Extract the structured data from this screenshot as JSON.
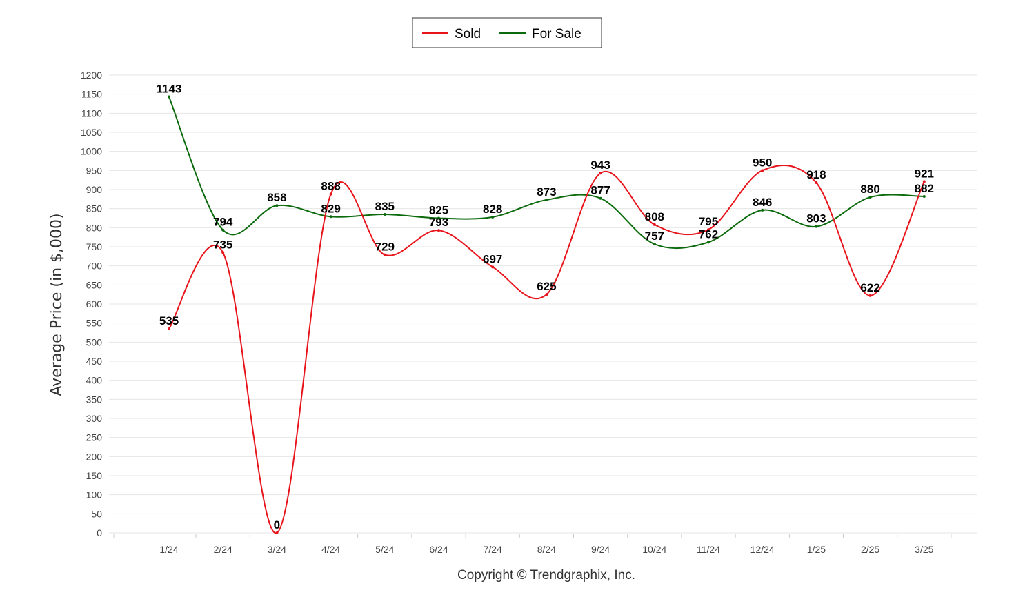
{
  "chart_data": {
    "type": "line",
    "categories": [
      "1/24",
      "2/24",
      "3/24",
      "4/24",
      "5/24",
      "6/24",
      "7/24",
      "8/24",
      "9/24",
      "10/24",
      "11/24",
      "12/24",
      "1/25",
      "2/25",
      "3/25"
    ],
    "series": [
      {
        "name": "Sold",
        "color": "#e8141b",
        "values": [
          535,
          735,
          0,
          888,
          729,
          793,
          697,
          625,
          943,
          808,
          795,
          950,
          918,
          622,
          921
        ]
      },
      {
        "name": "For Sale",
        "color": "#0b6a0b",
        "values": [
          1143,
          794,
          858,
          829,
          835,
          825,
          828,
          873,
          877,
          757,
          762,
          846,
          803,
          880,
          882
        ]
      }
    ],
    "ylabel": "Average Price (in $,000)",
    "xlabel": "",
    "ylim": [
      0,
      1200
    ],
    "yticks": [
      0,
      50,
      100,
      150,
      200,
      250,
      300,
      350,
      400,
      450,
      500,
      550,
      600,
      650,
      700,
      750,
      800,
      850,
      900,
      950,
      1000,
      1050,
      1100,
      1150,
      1200
    ],
    "grid": true,
    "legend": "top-center"
  },
  "footer": {
    "copyright": "Copyright © Trendgraphix, Inc."
  }
}
